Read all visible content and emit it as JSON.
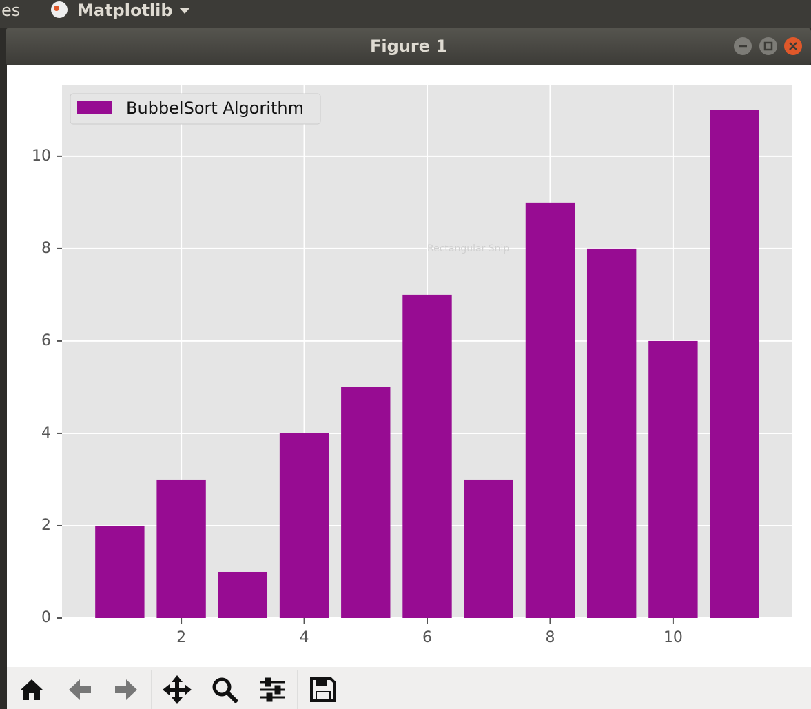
{
  "topbar": {
    "left_text": "es",
    "app_name": "Matplotlib"
  },
  "window": {
    "title": "Figure 1"
  },
  "overlay": "Rectangular Snip",
  "chart_data": {
    "type": "bar",
    "x": [
      1,
      2,
      3,
      4,
      5,
      6,
      7,
      8,
      9,
      10,
      11
    ],
    "series": [
      {
        "name": "BubbelSort Algorithm",
        "color": "#970c92",
        "values": [
          2,
          3,
          1,
          4,
          5,
          7,
          3,
          9,
          8,
          6,
          11
        ]
      }
    ],
    "xlim": [
      0.06,
      11.94
    ],
    "xticks": [
      2,
      4,
      6,
      8,
      10
    ],
    "ylim": [
      0,
      11.55
    ],
    "yticks": [
      0,
      2,
      4,
      6,
      8,
      10
    ],
    "grid": true,
    "legend": "upper left"
  }
}
